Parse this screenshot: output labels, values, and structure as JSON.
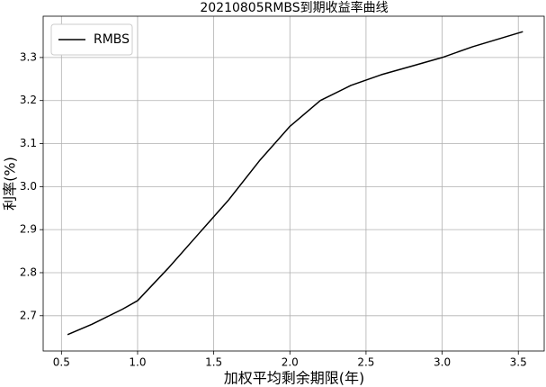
{
  "chart_data": {
    "type": "line",
    "title": "20210805RMBS到期收益率曲线",
    "x_label": "加权平均剩余期限(年)",
    "y_label": "利率(%)",
    "x": [
      0.54,
      0.7,
      0.9,
      1.0,
      1.2,
      1.4,
      1.6,
      1.8,
      2.0,
      2.2,
      2.4,
      2.6,
      2.8,
      3.0,
      3.2,
      3.53
    ],
    "series": [
      {
        "name": "RMBS",
        "color": "#000000",
        "values": [
          2.656,
          2.68,
          2.715,
          2.735,
          2.81,
          2.89,
          2.97,
          3.06,
          3.14,
          3.2,
          3.235,
          3.26,
          3.28,
          3.3,
          3.325,
          3.36
        ]
      }
    ],
    "xlim": [
      0.38,
      3.67
    ],
    "ylim": [
      2.618,
      3.396
    ],
    "xticks": [
      0.5,
      {
        "value": 1,
        "label": "1.0"
      },
      1.5,
      {
        "value": 2,
        "label": "2.0"
      },
      2.5,
      {
        "value": 3,
        "label": "3.0"
      },
      3.5
    ],
    "yticks": [
      2.7,
      2.8,
      2.9,
      {
        "value": 3,
        "label": "3.0"
      },
      3.1,
      3.2,
      3.3
    ],
    "grid": true,
    "legend": "upper left"
  }
}
